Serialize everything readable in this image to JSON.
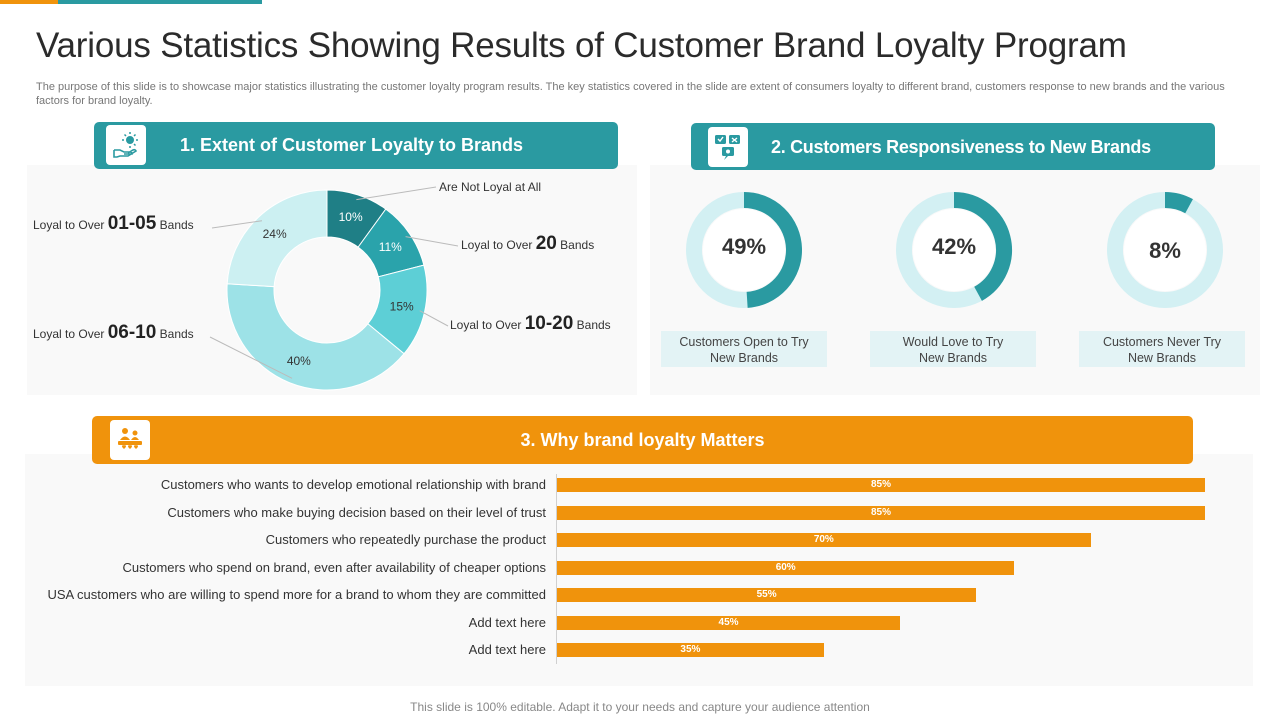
{
  "title": "Various Statistics Showing Results of Customer Brand Loyalty Program",
  "description": "The purpose of this slide is to showcase major statistics illustrating the customer loyalty program results. The key statistics covered in the slide are extent of consumers loyalty to different brand, customers response to new brands and the various factors for brand loyalty.",
  "footer": "This slide is 100% editable. Adapt it to your  needs and capture your audience attention",
  "colors": {
    "teal": "#2a9aa1",
    "orange": "#f0930c",
    "light_teal": "#e3f3f5"
  },
  "sections": {
    "s1": {
      "title": "1.  Extent of Customer Loyalty to Brands",
      "icon": "hand-sun-icon"
    },
    "s2": {
      "title": "2.  Customers Responsiveness to New Brands",
      "icon": "feedback-icon"
    },
    "s3": {
      "title": "3. Why brand loyalty Matters",
      "icon": "crowd-hearts-icon"
    }
  },
  "chart_data": [
    {
      "type": "pie",
      "variant": "donut",
      "slices": [
        {
          "label": "Are Not Loyal at All",
          "value": 10,
          "color": "#1f7f86",
          "pre": "Are Not Loyal at All",
          "big": "",
          "post": ""
        },
        {
          "label": "Loyal to Over 20 Bands",
          "value": 11,
          "color": "#2aa3ab",
          "pre": "Loyal to Over ",
          "big": "20",
          "post": " Bands"
        },
        {
          "label": "Loyal to Over 10-20 Bands",
          "value": 15,
          "color": "#5dcfd6",
          "pre": "Loyal to Over ",
          "big": "10-20",
          "post": " Bands"
        },
        {
          "label": "Loyal to Over 06-10 Bands",
          "value": 40,
          "color": "#9de2e7",
          "pre": "Loyal to Over ",
          "big": "06-10",
          "post": " Bands"
        },
        {
          "label": "Loyal to Over 01-05 Bands",
          "value": 24,
          "color": "#ccf0f2",
          "pre": "Loyal to Over ",
          "big": "01-05",
          "post": " Bands"
        }
      ]
    },
    {
      "type": "pie",
      "variant": "progress-rings",
      "items": [
        {
          "value": 49,
          "label": "49%",
          "caption1": "Customers Open to Try",
          "caption2": "New Brands"
        },
        {
          "value": 42,
          "label": "42%",
          "caption1": "Would Love  to Try",
          "caption2": "New Brands"
        },
        {
          "value": 8,
          "label": "8%",
          "caption1": "Customers Never  Try",
          "caption2": "New Brands"
        }
      ]
    },
    {
      "type": "bar",
      "orientation": "horizontal",
      "categories": [
        "Customers who wants to develop emotional relationship with brand",
        "Customers who make buying decision based on their level of trust",
        "Customers who repeatedly purchase the product",
        "Customers who spend on brand, even after availability of cheaper options",
        "USA customers who are willing to spend more for a brand to whom they are committed",
        "Add text here",
        "Add text here"
      ],
      "values": [
        85,
        85,
        70,
        60,
        55,
        45,
        35
      ],
      "value_labels": [
        "85%",
        "85%",
        "70%",
        "60%",
        "55%",
        "45%",
        "35%"
      ],
      "xlim": [
        0,
        85
      ]
    }
  ]
}
